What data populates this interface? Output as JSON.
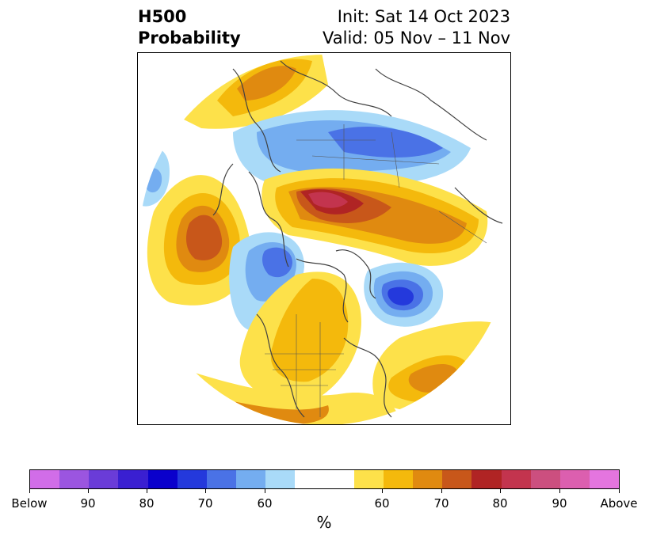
{
  "header": {
    "title_line1": "H500",
    "title_line2": "Probability",
    "init_text": "Init: Sat 14 Oct 2023",
    "valid_text": "Valid: 05 Nov – 11 Nov"
  },
  "colorbar": {
    "unit": "%",
    "colors": [
      "#d16de8",
      "#9b55e0",
      "#6a3cd8",
      "#3a1fd1",
      "#0a00cc",
      "#2439dc",
      "#4a72e6",
      "#74adf0",
      "#a9daf8",
      "#ffffff",
      "#ffffff",
      "#fde14a",
      "#f4b90c",
      "#e08a10",
      "#c8571a",
      "#b02424",
      "#c3344e",
      "#cc4f7f",
      "#dc5faf",
      "#e475df"
    ],
    "tick_labels": [
      "Below",
      "90",
      "80",
      "70",
      "60",
      "60",
      "70",
      "80",
      "90",
      "Above"
    ]
  }
}
